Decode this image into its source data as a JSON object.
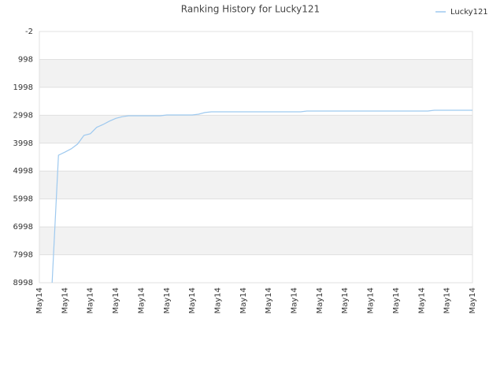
{
  "chart_data": {
    "type": "line",
    "title": "Ranking History for Lucky121",
    "categories": [
      "May14",
      null,
      null,
      null,
      "May14",
      null,
      null,
      null,
      "May14",
      null,
      null,
      null,
      "May14",
      null,
      null,
      null,
      "May14",
      null,
      null,
      null,
      "May14",
      null,
      null,
      null,
      "May14",
      null,
      null,
      null,
      "May14",
      null,
      null,
      null,
      "May14",
      null,
      null,
      null,
      "May14",
      null,
      null,
      null,
      "May14",
      null,
      null,
      null,
      "May14",
      null,
      null,
      null,
      "May14",
      null,
      null,
      null,
      "May14",
      null,
      null,
      null,
      "May14",
      null,
      null,
      null,
      "May14",
      null,
      null,
      null,
      "May14",
      null,
      null,
      null,
      "May14"
    ],
    "series": [
      {
        "name": "Lucky121",
        "color": "#9ec9ef",
        "values": [
          null,
          null,
          8998,
          4430,
          4320,
          4200,
          4030,
          3720,
          3660,
          3430,
          3330,
          3210,
          3110,
          3050,
          3016,
          3016,
          3016,
          3016,
          3016,
          3016,
          2988,
          2988,
          2988,
          2988,
          2988,
          2960,
          2900,
          2875,
          2875,
          2875,
          2875,
          2875,
          2875,
          2875,
          2875,
          2875,
          2875,
          2875,
          2875,
          2875,
          2875,
          2875,
          2847,
          2847,
          2847,
          2847,
          2847,
          2847,
          2847,
          2847,
          2847,
          2847,
          2847,
          2847,
          2847,
          2847,
          2847,
          2847,
          2847,
          2847,
          2847,
          2847,
          2819,
          2819,
          2819,
          2819,
          2819,
          2819,
          2819
        ]
      }
    ],
    "ylim": [
      -2,
      8998
    ],
    "yticks": [
      -2,
      998,
      1998,
      2998,
      3998,
      4998,
      5998,
      6998,
      7998,
      8998
    ],
    "y_inverted": true,
    "grid": true,
    "legend": "top-right"
  }
}
